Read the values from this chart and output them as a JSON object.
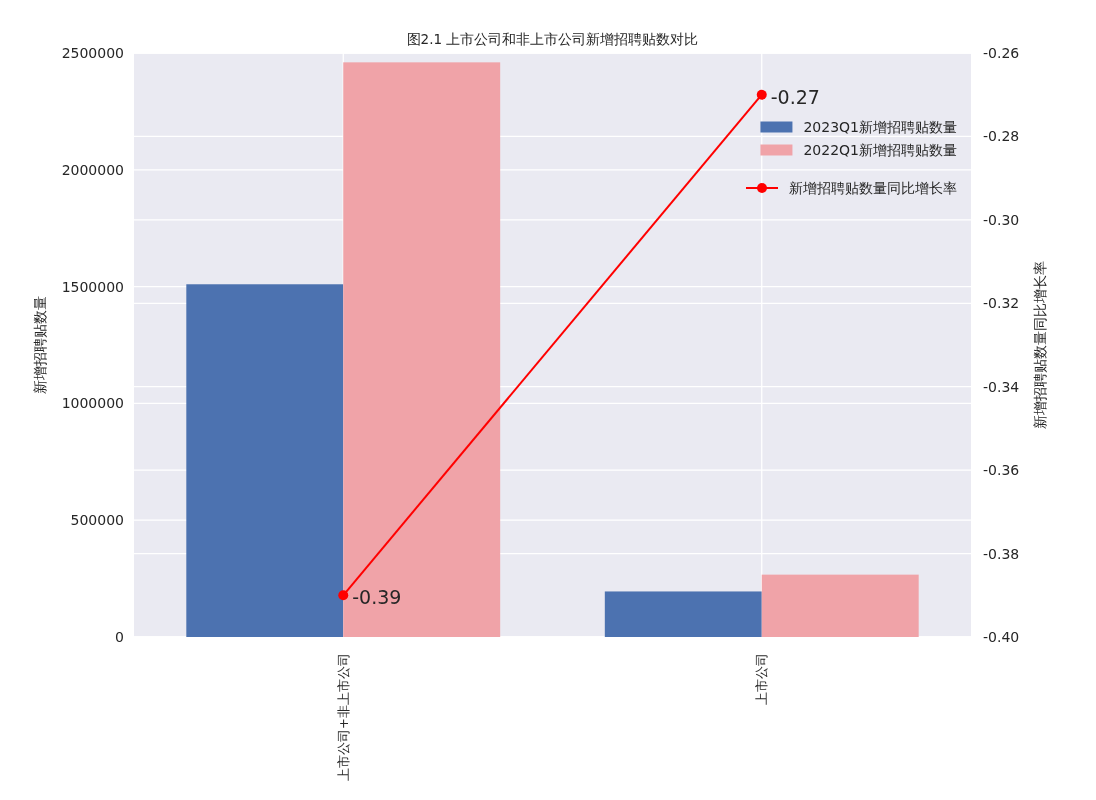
{
  "chart_data": {
    "type": "bar",
    "title": "图2.1 上市公司和非上市公司新增招聘贴数对比",
    "ylabel": "新增招聘贴数量",
    "y2label": "新增招聘贴数量同比增长率",
    "categories": [
      "上市公司+非上市公司",
      "上市公司"
    ],
    "series": [
      {
        "name": "2023Q1新增招聘贴数量",
        "color": "#4c72b0",
        "values": [
          1510000,
          195000
        ]
      },
      {
        "name": "2022Q1新增招聘贴数量",
        "color": "#f0a3a8",
        "values": [
          2460000,
          267000
        ]
      },
      {
        "name": "新增招聘贴数量同比增长率",
        "type": "line",
        "axis": "y2",
        "color": "#ff0000",
        "marker": "circle",
        "values": [
          -0.39,
          -0.27
        ],
        "value_labels": [
          "-0.39",
          "-0.27"
        ]
      }
    ],
    "ylim": [
      0,
      2500000
    ],
    "yticks": [
      0,
      500000,
      1000000,
      1500000,
      2000000,
      2500000
    ],
    "y2lim": [
      -0.4,
      -0.26
    ],
    "y2ticks": [
      {
        "value": -0.4,
        "label": "-0.40"
      },
      -0.38,
      -0.36,
      -0.34,
      -0.32,
      {
        "value": -0.3,
        "label": "-0.30"
      },
      -0.28,
      -0.26
    ],
    "grid": true,
    "legend": "top right"
  }
}
